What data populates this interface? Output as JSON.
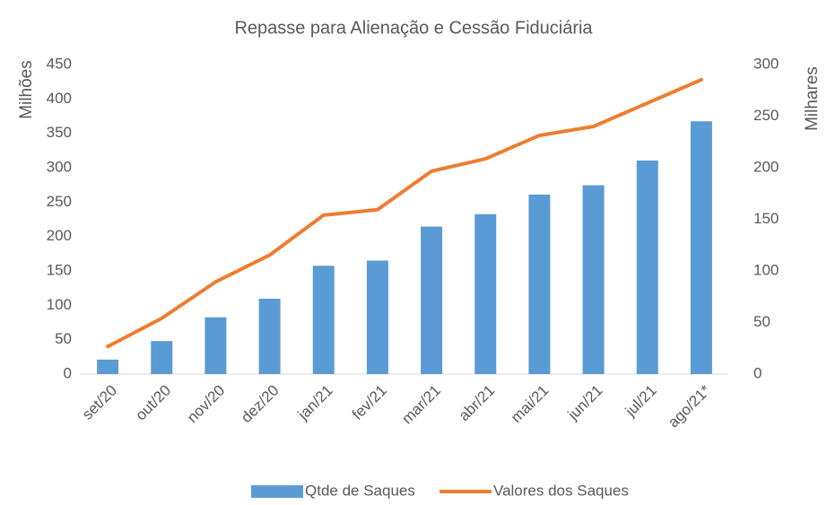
{
  "chart_data": {
    "type": "bar_line",
    "title": "Repasse para Alienação e Cessão Fiduciária",
    "ylabel": "Milhões",
    "y2label": "Milhares",
    "categories": [
      "set/20",
      "out/20",
      "nov/20",
      "dez/20",
      "jan/21",
      "fev/21",
      "mar/21",
      "abr/21",
      "mai/21",
      "jun/21",
      "jul/21",
      "ago/21*"
    ],
    "series": [
      {
        "name": "Qtde de Saques",
        "type": "bar",
        "axis": "y2",
        "color": "#5b9bd5",
        "values": [
          14,
          32,
          55,
          73,
          105,
          110,
          143,
          155,
          174,
          183,
          207,
          245
        ]
      },
      {
        "name": "Valores dos Saques",
        "type": "line",
        "color": "#ed7d31",
        "values": [
          40,
          81,
          134,
          173,
          231,
          239,
          295,
          313,
          347,
          360,
          394,
          428
        ]
      }
    ],
    "ylim": [
      0,
      450
    ],
    "yticks": [
      0,
      50,
      100,
      150,
      200,
      250,
      300,
      350,
      400,
      450
    ],
    "y2lim": [
      0,
      300
    ],
    "y2ticks": [
      0,
      50,
      100,
      150,
      200,
      250,
      300
    ],
    "legend": "bottom"
  }
}
